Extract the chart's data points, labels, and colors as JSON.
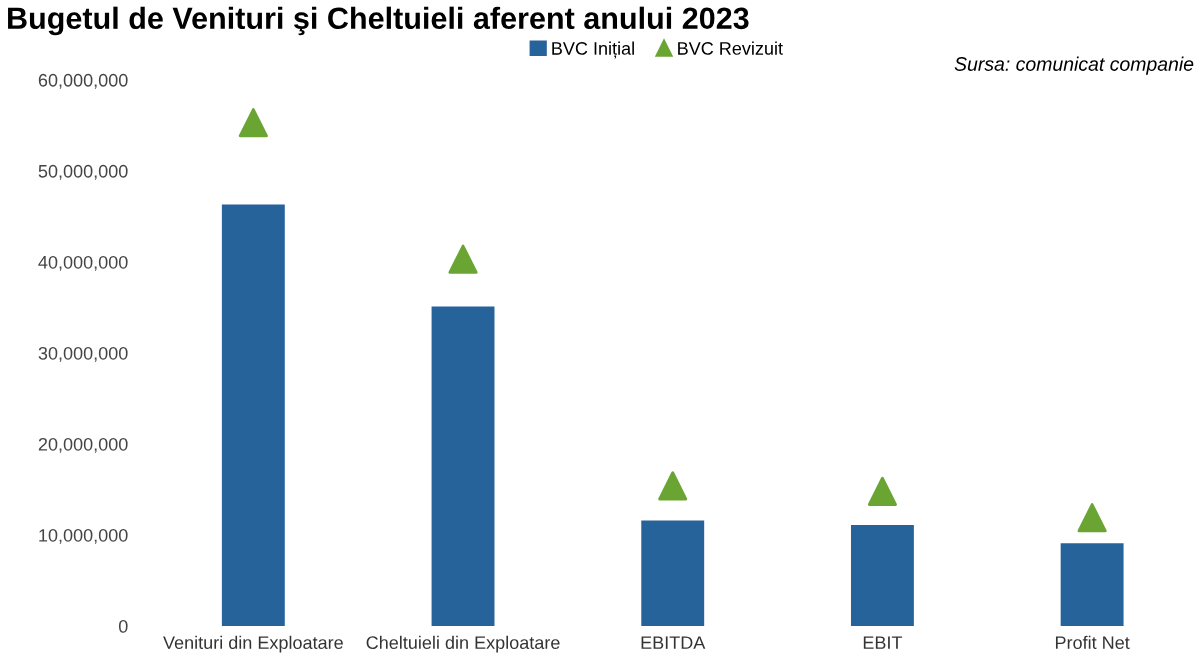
{
  "chart_data": {
    "type": "bar",
    "title": "Bugetul de Venituri şi Cheltuieli aferent anului 2023",
    "categories": [
      "Venituri din Exploatare",
      "Cheltuieli din Exploatare",
      "EBITDA",
      "EBIT",
      "Profit Net"
    ],
    "series": [
      {
        "name": "BVC Inițial",
        "color": "#27639b",
        "values": [
          46300000,
          35100000,
          11600000,
          11100000,
          9100000
        ]
      },
      {
        "name": "BVC Revizuit",
        "type": "scatter",
        "color": "#6aa533",
        "values": [
          55300000,
          40300000,
          15400000,
          14800000,
          11900000
        ]
      }
    ],
    "marker": "triangle",
    "ylim": [
      0,
      60000000
    ],
    "yticks": [
      {
        "value": 0,
        "label": "0"
      },
      {
        "value": 10000000,
        "label": "10,000,000"
      },
      {
        "value": 20000000,
        "label": "20,000,000"
      },
      {
        "value": 30000000,
        "label": "30,000,000"
      },
      {
        "value": 40000000,
        "label": "40,000,000"
      },
      {
        "value": 50000000,
        "label": "50,000,000"
      },
      {
        "value": 60000000,
        "label": "60,000,000"
      }
    ],
    "grid": false,
    "legend": "top",
    "annotations": [
      "Sursa: comunicat companie"
    ]
  }
}
